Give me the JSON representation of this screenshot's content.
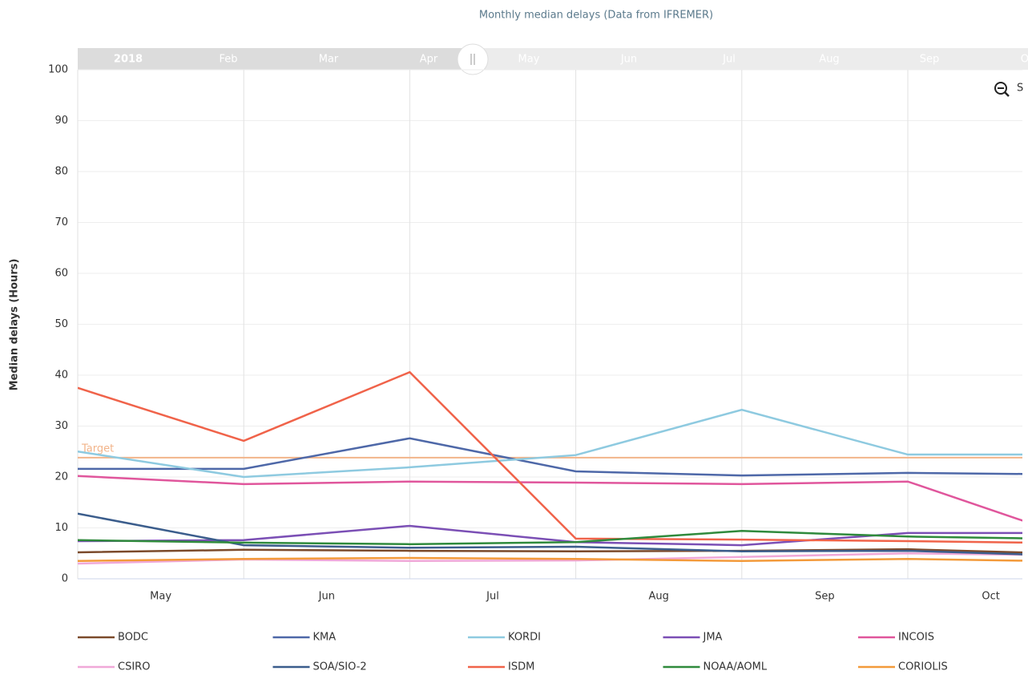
{
  "chart_data": {
    "type": "line",
    "title": "Monthly median delays (Data from IFREMER)",
    "y_label": "Median delays (Hours)",
    "navigator": [
      "2018",
      "Feb",
      "Mar",
      "Apr",
      "May",
      "Jun",
      "Jul",
      "Aug",
      "Sep",
      "Oct"
    ],
    "zoom_text": "S",
    "categories": [
      "May",
      "Jun",
      "Jul",
      "Aug",
      "Sep",
      "Oct",
      null
    ],
    "ylim": [
      0,
      100
    ],
    "yticks": [
      0,
      10,
      20,
      30,
      40,
      50,
      60,
      70,
      80,
      90,
      100
    ],
    "grid": true,
    "target": {
      "label": "Target",
      "value": 23.8,
      "color": "#f2b48a"
    },
    "series": [
      {
        "name": "BODC",
        "color": "#7b4a2b",
        "values": [
          5.2,
          5.7,
          5.5,
          5.4,
          5.5,
          5.8,
          4.9
        ]
      },
      {
        "name": "KMA",
        "color": "#4e68a8",
        "values": [
          21.6,
          21.6,
          27.6,
          21.1,
          20.3,
          20.8,
          20.5
        ]
      },
      {
        "name": "KORDI",
        "color": "#8ecae0",
        "values": [
          25,
          20,
          21.9,
          24.3,
          33.2,
          24.4,
          24.4
        ]
      },
      {
        "name": "JMA",
        "color": "#7b4fb5",
        "values": [
          7.4,
          7.6,
          10.4,
          7.2,
          6.6,
          9,
          9
        ]
      },
      {
        "name": "INCOIS",
        "color": "#e0569c",
        "values": [
          20.2,
          18.6,
          19.1,
          18.9,
          18.6,
          19.1,
          8
        ]
      },
      {
        "name": "CSIRO",
        "color": "#f0a8d8",
        "values": [
          3,
          3.8,
          3.5,
          3.6,
          4.3,
          5,
          4.6
        ]
      },
      {
        "name": "SOA/SIO-2",
        "color": "#3b5d8c",
        "values": [
          12.8,
          6.6,
          6.1,
          6.3,
          5.4,
          5.5,
          4.5
        ]
      },
      {
        "name": "ISDM",
        "color": "#f0634a",
        "values": [
          37.5,
          27.1,
          40.6,
          7.9,
          7.7,
          7.4,
          7
        ]
      },
      {
        "name": "NOAA/AOML",
        "color": "#2f8a3c",
        "values": [
          7.6,
          7.1,
          6.8,
          7.2,
          9.4,
          8.3,
          7.8
        ]
      },
      {
        "name": "CORIOLIS",
        "color": "#f39a3a",
        "values": [
          3.5,
          3.9,
          4.1,
          3.9,
          3.5,
          3.9,
          3.4
        ]
      }
    ]
  }
}
